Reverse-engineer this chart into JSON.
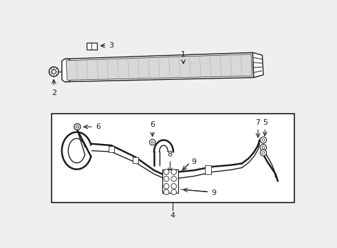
{
  "bg": "#efefef",
  "white": "#ffffff",
  "black": "#1a1a1a",
  "gray": "#aaaaaa",
  "lgray": "#d8d8d8"
}
